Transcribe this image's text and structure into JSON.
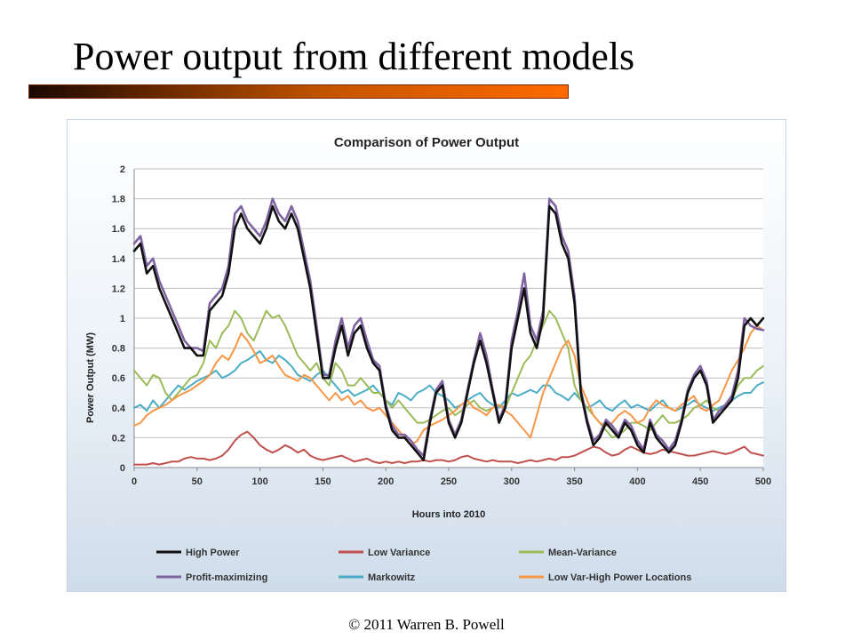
{
  "slide": {
    "title": "Power output from different models",
    "footer": "© 2011 Warren B. Powell"
  },
  "colors": {
    "title_bar_start": "#1a0800",
    "title_bar_end": "#ff6a00"
  },
  "chart_data": {
    "type": "line",
    "title": "Comparison of Power Output",
    "xlabel": "Hours into 2010",
    "ylabel": "Power Output (MW)",
    "xlim": [
      0,
      500
    ],
    "ylim": [
      0,
      2
    ],
    "xticks": [
      0,
      50,
      100,
      150,
      200,
      250,
      300,
      350,
      400,
      450,
      500
    ],
    "yticks": [
      0,
      0.2,
      0.4,
      0.6,
      0.8,
      1,
      1.2,
      1.4,
      1.6,
      1.8,
      2
    ],
    "ytick_labels": [
      "0",
      "0.2",
      "0.4",
      "0.6",
      "0.8",
      "1",
      "1.2",
      "1.4",
      "1.6",
      "1.8",
      "2"
    ],
    "grid": true,
    "legend_position": "bottom",
    "x": [
      0,
      5,
      10,
      15,
      20,
      25,
      30,
      35,
      40,
      45,
      50,
      55,
      60,
      65,
      70,
      75,
      80,
      85,
      90,
      95,
      100,
      105,
      110,
      115,
      120,
      125,
      130,
      135,
      140,
      145,
      150,
      155,
      160,
      165,
      170,
      175,
      180,
      185,
      190,
      195,
      200,
      205,
      210,
      215,
      220,
      225,
      230,
      235,
      240,
      245,
      250,
      255,
      260,
      265,
      270,
      275,
      280,
      285,
      290,
      295,
      300,
      305,
      310,
      315,
      320,
      325,
      330,
      335,
      340,
      345,
      350,
      355,
      360,
      365,
      370,
      375,
      380,
      385,
      390,
      395,
      400,
      405,
      410,
      415,
      420,
      425,
      430,
      435,
      440,
      445,
      450,
      455,
      460,
      465,
      470,
      475,
      480,
      485,
      490,
      495,
      500
    ],
    "series": [
      {
        "name": "High Power",
        "color": "#111111",
        "values": [
          1.45,
          1.5,
          1.3,
          1.35,
          1.2,
          1.1,
          1.0,
          0.9,
          0.8,
          0.8,
          0.75,
          0.75,
          1.05,
          1.1,
          1.15,
          1.3,
          1.6,
          1.7,
          1.6,
          1.55,
          1.5,
          1.6,
          1.75,
          1.65,
          1.6,
          1.7,
          1.6,
          1.4,
          1.2,
          0.9,
          0.6,
          0.6,
          0.8,
          0.95,
          0.75,
          0.9,
          0.95,
          0.8,
          0.7,
          0.65,
          0.4,
          0.25,
          0.2,
          0.2,
          0.15,
          0.1,
          0.05,
          0.3,
          0.5,
          0.55,
          0.3,
          0.2,
          0.3,
          0.5,
          0.7,
          0.85,
          0.7,
          0.5,
          0.3,
          0.4,
          0.8,
          1.0,
          1.2,
          0.9,
          0.8,
          1.0,
          1.75,
          1.7,
          1.5,
          1.4,
          1.1,
          0.5,
          0.3,
          0.15,
          0.2,
          0.3,
          0.25,
          0.2,
          0.3,
          0.25,
          0.15,
          0.1,
          0.3,
          0.2,
          0.15,
          0.1,
          0.15,
          0.3,
          0.5,
          0.6,
          0.65,
          0.55,
          0.3,
          0.35,
          0.4,
          0.45,
          0.6,
          0.95,
          1.0,
          0.95,
          1.0
        ]
      },
      {
        "name": "Low Variance",
        "color": "#c0504d",
        "values": [
          0.02,
          0.02,
          0.02,
          0.03,
          0.02,
          0.03,
          0.04,
          0.04,
          0.06,
          0.07,
          0.06,
          0.06,
          0.05,
          0.06,
          0.08,
          0.12,
          0.18,
          0.22,
          0.24,
          0.2,
          0.15,
          0.12,
          0.1,
          0.12,
          0.15,
          0.13,
          0.1,
          0.12,
          0.08,
          0.06,
          0.05,
          0.06,
          0.07,
          0.08,
          0.06,
          0.04,
          0.05,
          0.06,
          0.04,
          0.03,
          0.04,
          0.03,
          0.04,
          0.03,
          0.04,
          0.04,
          0.05,
          0.04,
          0.05,
          0.05,
          0.04,
          0.05,
          0.07,
          0.08,
          0.06,
          0.05,
          0.04,
          0.05,
          0.04,
          0.04,
          0.04,
          0.03,
          0.04,
          0.05,
          0.04,
          0.05,
          0.06,
          0.05,
          0.07,
          0.07,
          0.08,
          0.1,
          0.12,
          0.14,
          0.13,
          0.1,
          0.08,
          0.09,
          0.12,
          0.14,
          0.12,
          0.1,
          0.09,
          0.1,
          0.12,
          0.11,
          0.1,
          0.09,
          0.08,
          0.08,
          0.09,
          0.1,
          0.11,
          0.1,
          0.09,
          0.1,
          0.12,
          0.14,
          0.1,
          0.09,
          0.08
        ]
      },
      {
        "name": "Mean-Variance",
        "color": "#9bbb59",
        "values": [
          0.65,
          0.6,
          0.55,
          0.62,
          0.6,
          0.5,
          0.45,
          0.5,
          0.55,
          0.6,
          0.62,
          0.7,
          0.85,
          0.8,
          0.9,
          0.95,
          1.05,
          1.0,
          0.9,
          0.85,
          0.95,
          1.05,
          1.0,
          1.02,
          0.95,
          0.85,
          0.75,
          0.7,
          0.65,
          0.7,
          0.6,
          0.55,
          0.7,
          0.65,
          0.55,
          0.55,
          0.6,
          0.55,
          0.5,
          0.5,
          0.45,
          0.4,
          0.45,
          0.4,
          0.35,
          0.3,
          0.3,
          0.32,
          0.35,
          0.38,
          0.4,
          0.35,
          0.38,
          0.42,
          0.45,
          0.4,
          0.38,
          0.4,
          0.42,
          0.4,
          0.5,
          0.6,
          0.7,
          0.75,
          0.85,
          0.95,
          1.05,
          1.0,
          0.9,
          0.8,
          0.55,
          0.45,
          0.4,
          0.35,
          0.3,
          0.25,
          0.2,
          0.22,
          0.25,
          0.3,
          0.3,
          0.28,
          0.25,
          0.3,
          0.35,
          0.3,
          0.3,
          0.32,
          0.35,
          0.4,
          0.42,
          0.45,
          0.4,
          0.38,
          0.4,
          0.45,
          0.55,
          0.6,
          0.6,
          0.65,
          0.68
        ]
      },
      {
        "name": "Profit-maximizing",
        "color": "#8064a2",
        "values": [
          1.5,
          1.55,
          1.35,
          1.4,
          1.25,
          1.15,
          1.05,
          0.95,
          0.85,
          0.8,
          0.8,
          0.78,
          1.1,
          1.15,
          1.2,
          1.35,
          1.7,
          1.75,
          1.65,
          1.6,
          1.55,
          1.65,
          1.8,
          1.7,
          1.65,
          1.75,
          1.65,
          1.45,
          1.25,
          0.95,
          0.62,
          0.62,
          0.85,
          1.0,
          0.8,
          0.95,
          1.0,
          0.85,
          0.72,
          0.68,
          0.42,
          0.28,
          0.22,
          0.22,
          0.18,
          0.12,
          0.08,
          0.32,
          0.52,
          0.58,
          0.32,
          0.22,
          0.32,
          0.52,
          0.72,
          0.9,
          0.75,
          0.52,
          0.32,
          0.42,
          0.85,
          1.05,
          1.3,
          0.95,
          0.85,
          1.05,
          1.8,
          1.75,
          1.55,
          1.45,
          1.15,
          0.52,
          0.32,
          0.18,
          0.22,
          0.32,
          0.28,
          0.22,
          0.32,
          0.28,
          0.18,
          0.12,
          0.32,
          0.22,
          0.18,
          0.12,
          0.18,
          0.32,
          0.52,
          0.62,
          0.68,
          0.58,
          0.32,
          0.38,
          0.42,
          0.48,
          0.65,
          1.0,
          0.95,
          0.93,
          0.92
        ]
      },
      {
        "name": "Markowitz",
        "color": "#4bacc6",
        "values": [
          0.4,
          0.42,
          0.38,
          0.45,
          0.4,
          0.45,
          0.5,
          0.55,
          0.52,
          0.55,
          0.58,
          0.6,
          0.62,
          0.65,
          0.6,
          0.62,
          0.65,
          0.7,
          0.72,
          0.75,
          0.78,
          0.72,
          0.7,
          0.75,
          0.72,
          0.68,
          0.62,
          0.6,
          0.58,
          0.62,
          0.65,
          0.6,
          0.55,
          0.5,
          0.52,
          0.48,
          0.5,
          0.52,
          0.55,
          0.5,
          0.45,
          0.42,
          0.5,
          0.48,
          0.45,
          0.5,
          0.52,
          0.55,
          0.5,
          0.48,
          0.45,
          0.4,
          0.42,
          0.45,
          0.48,
          0.5,
          0.45,
          0.42,
          0.4,
          0.45,
          0.5,
          0.48,
          0.5,
          0.52,
          0.5,
          0.55,
          0.55,
          0.5,
          0.48,
          0.45,
          0.5,
          0.45,
          0.4,
          0.42,
          0.45,
          0.4,
          0.38,
          0.42,
          0.45,
          0.4,
          0.42,
          0.4,
          0.38,
          0.42,
          0.45,
          0.4,
          0.38,
          0.4,
          0.42,
          0.45,
          0.42,
          0.4,
          0.38,
          0.4,
          0.42,
          0.45,
          0.48,
          0.5,
          0.5,
          0.55,
          0.57
        ]
      },
      {
        "name": "Low Var-High Power Locations",
        "color": "#f79646",
        "values": [
          0.28,
          0.3,
          0.35,
          0.38,
          0.4,
          0.42,
          0.45,
          0.48,
          0.5,
          0.52,
          0.55,
          0.58,
          0.62,
          0.7,
          0.75,
          0.72,
          0.8,
          0.9,
          0.85,
          0.78,
          0.7,
          0.72,
          0.75,
          0.68,
          0.62,
          0.6,
          0.58,
          0.62,
          0.6,
          0.55,
          0.5,
          0.45,
          0.5,
          0.45,
          0.48,
          0.42,
          0.45,
          0.4,
          0.38,
          0.4,
          0.35,
          0.3,
          0.25,
          0.2,
          0.15,
          0.18,
          0.25,
          0.28,
          0.3,
          0.32,
          0.35,
          0.38,
          0.42,
          0.45,
          0.4,
          0.38,
          0.35,
          0.4,
          0.42,
          0.38,
          0.35,
          0.3,
          0.25,
          0.2,
          0.35,
          0.5,
          0.6,
          0.7,
          0.8,
          0.85,
          0.75,
          0.55,
          0.45,
          0.35,
          0.3,
          0.28,
          0.3,
          0.35,
          0.38,
          0.35,
          0.3,
          0.32,
          0.4,
          0.45,
          0.42,
          0.4,
          0.38,
          0.42,
          0.45,
          0.48,
          0.4,
          0.38,
          0.42,
          0.45,
          0.55,
          0.65,
          0.72,
          0.8,
          0.9,
          0.95,
          0.92
        ]
      }
    ]
  }
}
